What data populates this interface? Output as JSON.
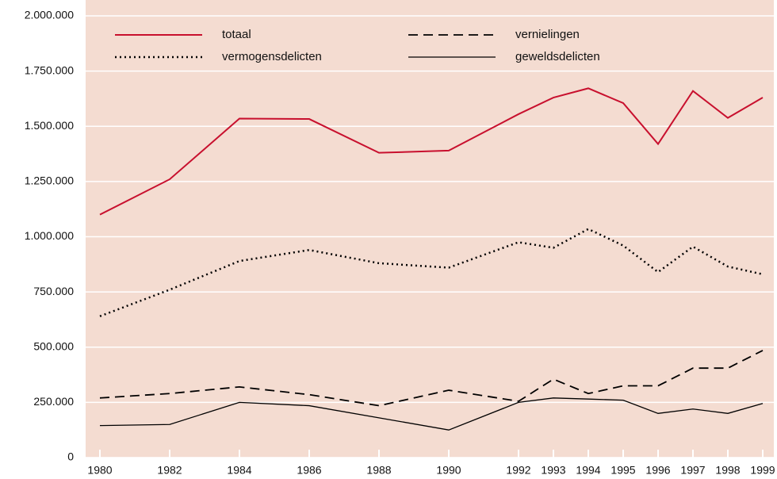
{
  "chart_data": {
    "type": "line",
    "x": [
      1980,
      1982,
      1984,
      1986,
      1988,
      1990,
      1992,
      1993,
      1994,
      1995,
      1996,
      1997,
      1998,
      1999
    ],
    "xlim": [
      1980,
      1999
    ],
    "xticks": [
      1980,
      1982,
      1984,
      1986,
      1988,
      1990,
      1992,
      1993,
      1994,
      1995,
      1996,
      1997,
      1998,
      1999
    ],
    "ylim": [
      0,
      2000000
    ],
    "yticks": [
      0,
      {
        "value": 250000,
        "label": "250.000"
      },
      {
        "value": 500000,
        "label": "500.000"
      },
      {
        "value": 750000,
        "label": "750.000"
      },
      {
        "value": 1000000,
        "label": "1.000.000"
      },
      {
        "value": 1250000,
        "label": "1.250.000"
      },
      {
        "value": 1500000,
        "label": "1.500.000"
      },
      {
        "value": 1750000,
        "label": "1.750.000"
      },
      {
        "value": 2000000,
        "label": "2.000.000"
      }
    ],
    "grid": true,
    "legend": "top",
    "series": [
      {
        "name": "totaal",
        "color": "#c8102e",
        "dash": "solid",
        "values": [
          1100000,
          1260000,
          1535000,
          1533000,
          1380000,
          1390000,
          1555000,
          1630000,
          1672000,
          1605000,
          1420000,
          1660000,
          1538000,
          1630000
        ]
      },
      {
        "name": "vernielingen",
        "color": "#000000",
        "dash": "dashed",
        "values": [
          270000,
          290000,
          320000,
          285000,
          235000,
          305000,
          255000,
          355000,
          290000,
          325000,
          325000,
          405000,
          405000,
          485000
        ]
      },
      {
        "name": "vermogensdelicten",
        "color": "#000000",
        "dash": "dotted",
        "values": [
          640000,
          760000,
          890000,
          940000,
          880000,
          860000,
          975000,
          950000,
          1035000,
          960000,
          840000,
          955000,
          865000,
          830000
        ]
      },
      {
        "name": "geweldsdelicten",
        "color": "#000000",
        "dash": "solid",
        "values": [
          145000,
          150000,
          250000,
          235000,
          180000,
          125000,
          250000,
          270000,
          265000,
          260000,
          200000,
          220000,
          200000,
          245000
        ]
      }
    ]
  }
}
